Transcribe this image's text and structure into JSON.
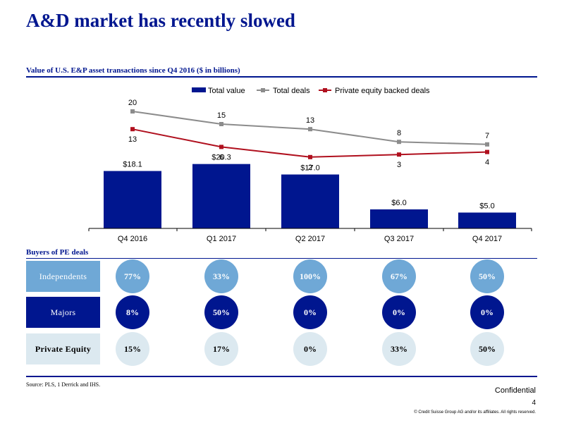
{
  "title": "A&D market has recently slowed",
  "chart_data": {
    "type": "bar",
    "subtitle": "Value of U.S. E&P asset transactions since Q4 2016 ($ in billions)",
    "categories": [
      "Q4 2016",
      "Q1 2017",
      "Q2 2017",
      "Q3 2017",
      "Q4 2017"
    ],
    "series": [
      {
        "name": "Total value",
        "type": "bar",
        "color": "#00168f",
        "values": [
          18.1,
          20.3,
          17.0,
          6.0,
          5.0
        ],
        "labels": [
          "$18.1",
          "$20.3",
          "$17.0",
          "$6.0",
          "$5.0"
        ]
      },
      {
        "name": "Total deals",
        "type": "line",
        "color": "#8c8c8c",
        "values": [
          20,
          15,
          13,
          8,
          7
        ],
        "labels": [
          "20",
          "15",
          "13",
          "8",
          "7"
        ]
      },
      {
        "name": "Private equity backed deals",
        "type": "line",
        "color": "#b0101e",
        "values": [
          13,
          6,
          2,
          3,
          4
        ],
        "labels": [
          "13",
          "6",
          "2",
          "3",
          "4"
        ]
      }
    ],
    "legend": "top-center"
  },
  "buyers": {
    "title": "Buyers of PE deals",
    "rows": [
      {
        "label": "Independents",
        "values": [
          "77%",
          "33%",
          "100%",
          "67%",
          "50%"
        ],
        "box_color": "#6fa8d6",
        "circle_color": "#6fa8d6",
        "text_color": "#ffffff"
      },
      {
        "label": "Majors",
        "values": [
          "8%",
          "50%",
          "0%",
          "0%",
          "0%"
        ],
        "box_color": "#00168f",
        "circle_color": "#00168f",
        "text_color": "#ffffff"
      },
      {
        "label": "Private Equity",
        "values": [
          "15%",
          "17%",
          "0%",
          "33%",
          "50%"
        ],
        "box_color": "#dce9f0",
        "circle_color": "#dce9f0",
        "text_color": "#000000"
      }
    ]
  },
  "footer": {
    "source": "Source:    PLS, 1 Derrick and IHS.",
    "confidential": "Confidential",
    "page": "4",
    "copyright": "© Credit Suisse Group AG and/or its affiliates. All rights reserved."
  }
}
